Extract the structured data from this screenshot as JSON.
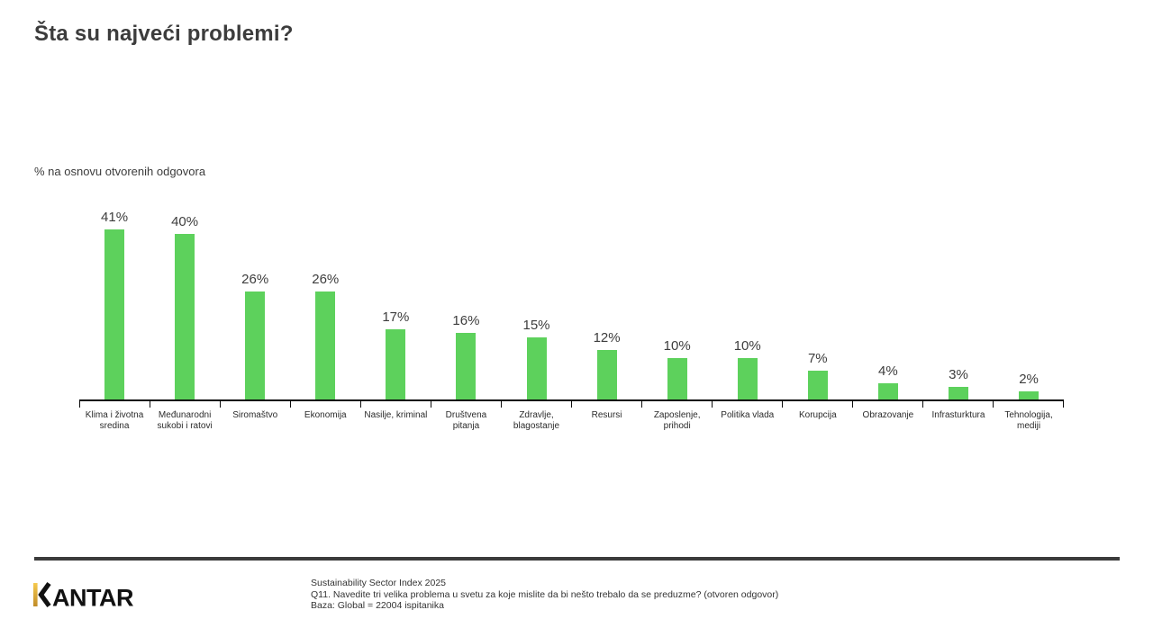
{
  "page": {
    "title": "Šta su najveći problemi?",
    "subtitle": "% na osnovu otvorenih odgovora"
  },
  "chart_data": {
    "type": "bar",
    "title": "Šta su najveći problemi?",
    "subtitle": "% na osnovu otvorenih odgovora",
    "categories": [
      "Klima i životna sredina",
      "Međunarodni sukobi i ratovi",
      "Siromaštvo",
      "Ekonomija",
      "Nasilje, kriminal",
      "Društvena pitanja",
      "Zdravlje, blagostanje",
      "Resursi",
      "Zaposlenje, prihodi",
      "Politika vlada",
      "Korupcija",
      "Obrazovanje",
      "Infrasturktura",
      "Tehnologija, mediji"
    ],
    "values": [
      41,
      40,
      26,
      26,
      17,
      16,
      15,
      12,
      10,
      10,
      7,
      4,
      3,
      2
    ],
    "value_labels": [
      "41%",
      "40%",
      "26%",
      "26%",
      "17%",
      "16%",
      "15%",
      "12%",
      "10%",
      "10%",
      "7%",
      "4%",
      "3%",
      "2%"
    ],
    "unit": "%",
    "bar_color": "#5dd15c",
    "axis_color": "#0d0d0d",
    "label_color": "#3d3d3d",
    "ylim": [
      0,
      45
    ],
    "grid": false,
    "legend": false
  },
  "footer": {
    "logo_text": "KANTAR",
    "logo_accent_top": "#f6ca4e",
    "logo_accent_bottom": "#c08c28",
    "logo_color": "#111111",
    "source_lines": [
      "Sustainability Sector Index 2025",
      "Q11. Navedite tri velika problema u svetu za koje mislite da bi nešto trebalo da se preduzme? (otvoren odgovor)",
      "Baza: Global = 22004 ispitanika"
    ]
  }
}
